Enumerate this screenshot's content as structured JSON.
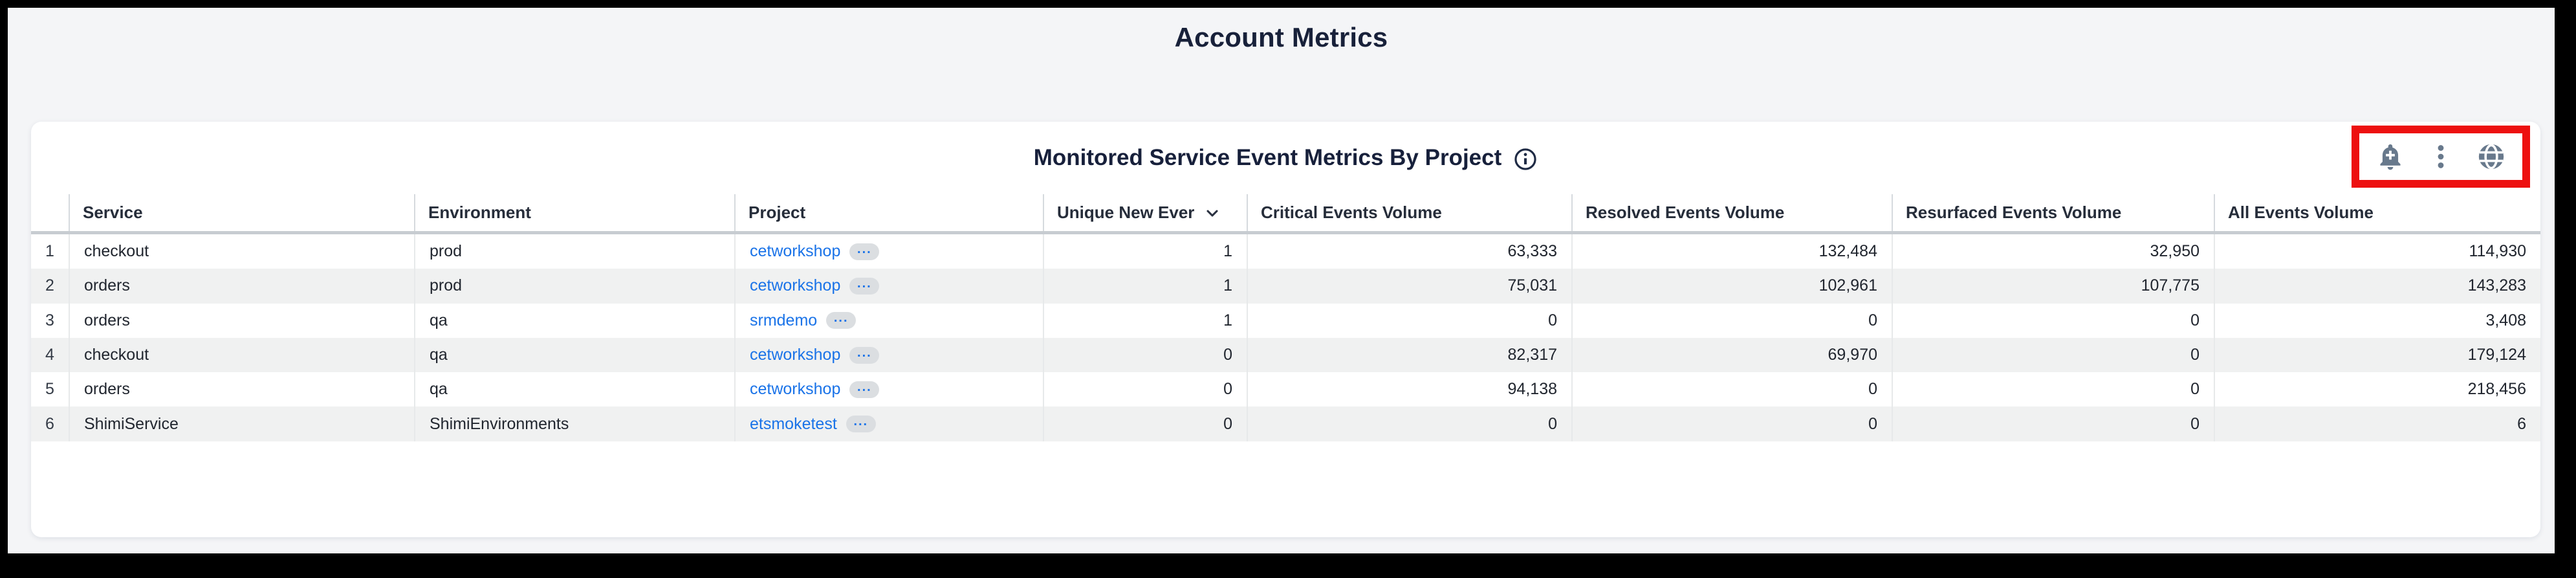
{
  "page": {
    "title": "Account Metrics"
  },
  "panel": {
    "title": "Monitored Service Event Metrics By Project",
    "toolbar_icons": [
      {
        "name": "add-alert-icon"
      },
      {
        "name": "kebab-menu-icon"
      },
      {
        "name": "globe-icon"
      }
    ]
  },
  "colors": {
    "annotation_red": "#ed1010",
    "link_blue": "#1a73e8",
    "icon_slate": "#68798c",
    "title_navy": "#17203b"
  },
  "table": {
    "columns": [
      {
        "key": "num",
        "label": "",
        "align": "num",
        "sortable": false
      },
      {
        "key": "service",
        "label": "Service",
        "align": "left",
        "sortable": true
      },
      {
        "key": "environment",
        "label": "Environment",
        "align": "left",
        "sortable": true
      },
      {
        "key": "project",
        "label": "Project",
        "align": "left",
        "sortable": true
      },
      {
        "key": "unique",
        "label": "Unique New Ever",
        "align": "right",
        "sortable": true,
        "sorted": true
      },
      {
        "key": "critical",
        "label": "Critical Events Volume",
        "align": "right",
        "sortable": true
      },
      {
        "key": "resolved",
        "label": "Resolved Events Volume",
        "align": "right",
        "sortable": true
      },
      {
        "key": "resurfaced",
        "label": "Resurfaced Events Volume",
        "align": "right",
        "sortable": true
      },
      {
        "key": "all",
        "label": "All Events Volume",
        "align": "right",
        "sortable": true
      }
    ],
    "rows": [
      {
        "num": "1",
        "service": "checkout",
        "environment": "prod",
        "project": "cetworkshop",
        "unique": "1",
        "critical": "63,333",
        "resolved": "132,484",
        "resurfaced": "32,950",
        "all": "114,930"
      },
      {
        "num": "2",
        "service": "orders",
        "environment": "prod",
        "project": "cetworkshop",
        "unique": "1",
        "critical": "75,031",
        "resolved": "102,961",
        "resurfaced": "107,775",
        "all": "143,283"
      },
      {
        "num": "3",
        "service": "orders",
        "environment": "qa",
        "project": "srmdemo",
        "unique": "1",
        "critical": "0",
        "resolved": "0",
        "resurfaced": "0",
        "all": "3,408"
      },
      {
        "num": "4",
        "service": "checkout",
        "environment": "qa",
        "project": "cetworkshop",
        "unique": "0",
        "critical": "82,317",
        "resolved": "69,970",
        "resurfaced": "0",
        "all": "179,124"
      },
      {
        "num": "5",
        "service": "orders",
        "environment": "qa",
        "project": "cetworkshop",
        "unique": "0",
        "critical": "94,138",
        "resolved": "0",
        "resurfaced": "0",
        "all": "218,456"
      },
      {
        "num": "6",
        "service": "ShimiService",
        "environment": "ShimiEnvironments",
        "project": "etsmoketest",
        "unique": "0",
        "critical": "0",
        "resolved": "0",
        "resurfaced": "0",
        "all": "6"
      }
    ]
  }
}
